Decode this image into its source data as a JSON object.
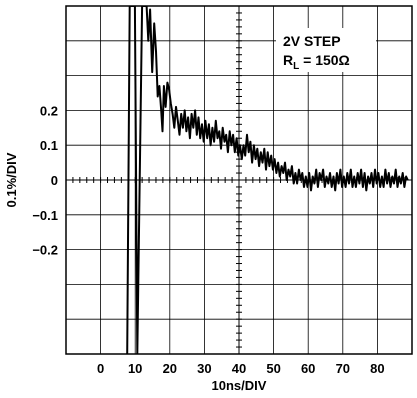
{
  "chart_data": {
    "type": "line",
    "title": "",
    "xlabel": "10ns/DIV",
    "ylabel": "0.1%/DIV",
    "x_tick_labels": [
      "0",
      "10",
      "20",
      "30",
      "40",
      "50",
      "60",
      "70",
      "80"
    ],
    "x_ticks": [
      0,
      10,
      20,
      30,
      40,
      50,
      60,
      70,
      80
    ],
    "y_tick_labels": [
      "0.2",
      "0.1",
      "0",
      "−0.1",
      "−0.2"
    ],
    "y_ticks": [
      0.2,
      0.1,
      0,
      -0.1,
      -0.2
    ],
    "xlim": [
      -10,
      90
    ],
    "ylim": [
      -0.5,
      0.5
    ],
    "grid": true,
    "annotation": {
      "line1": "2V STEP",
      "line2_main": "R",
      "line2_sub": "L",
      "line2_rest": " = 150Ω"
    },
    "series": [
      {
        "values": [
          [
            7.7,
            -0.5
          ],
          [
            8.4,
            0.5
          ],
          [
            9.9,
            0.5
          ],
          [
            10.6,
            -0.5
          ],
          [
            12.0,
            0.5
          ],
          [
            13.3,
            0.5
          ],
          [
            13.8,
            0.4
          ],
          [
            14.3,
            0.49
          ],
          [
            14.9,
            0.31
          ],
          [
            15.5,
            0.45
          ],
          [
            16.0,
            0.37
          ],
          [
            16.5,
            0.24
          ],
          [
            17.0,
            0.27
          ],
          [
            17.5,
            0.2
          ],
          [
            17.9,
            0.14
          ],
          [
            18.3,
            0.27
          ],
          [
            18.8,
            0.21
          ],
          [
            19.3,
            0.28
          ],
          [
            19.8,
            0.26
          ],
          [
            20.3,
            0.22
          ],
          [
            20.8,
            0.19
          ],
          [
            21.3,
            0.15
          ],
          [
            21.8,
            0.21
          ],
          [
            22.3,
            0.17
          ],
          [
            22.8,
            0.13
          ],
          [
            23.3,
            0.19
          ],
          [
            23.8,
            0.15
          ],
          [
            24.3,
            0.2
          ],
          [
            24.8,
            0.14
          ],
          [
            25.3,
            0.18
          ],
          [
            25.8,
            0.12
          ],
          [
            26.3,
            0.19
          ],
          [
            26.8,
            0.15
          ],
          [
            27.3,
            0.2
          ],
          [
            27.8,
            0.13
          ],
          [
            28.3,
            0.18
          ],
          [
            28.8,
            0.12
          ],
          [
            29.3,
            0.16
          ],
          [
            29.8,
            0.11
          ],
          [
            30.3,
            0.17
          ],
          [
            30.8,
            0.12
          ],
          [
            31.3,
            0.16
          ],
          [
            31.8,
            0.1
          ],
          [
            32.3,
            0.15
          ],
          [
            32.8,
            0.11
          ],
          [
            33.3,
            0.17
          ],
          [
            33.8,
            0.12
          ],
          [
            34.3,
            0.14
          ],
          [
            34.8,
            0.09
          ],
          [
            35.3,
            0.15
          ],
          [
            35.8,
            0.11
          ],
          [
            36.3,
            0.13
          ],
          [
            36.8,
            0.08
          ],
          [
            37.3,
            0.14
          ],
          [
            37.8,
            0.1
          ],
          [
            38.3,
            0.13
          ],
          [
            38.8,
            0.08
          ],
          [
            39.3,
            0.12
          ],
          [
            39.8,
            0.07
          ],
          [
            40.3,
            0.1
          ],
          [
            40.8,
            0.06
          ],
          [
            41.3,
            0.1
          ],
          [
            41.8,
            0.07
          ],
          [
            42.3,
            0.13
          ],
          [
            42.8,
            0.08
          ],
          [
            43.3,
            0.11
          ],
          [
            43.8,
            0.05
          ],
          [
            44.3,
            0.1
          ],
          [
            44.8,
            0.06
          ],
          [
            45.3,
            0.09
          ],
          [
            45.8,
            0.04
          ],
          [
            46.3,
            0.08
          ],
          [
            46.8,
            0.05
          ],
          [
            47.3,
            0.09
          ],
          [
            47.8,
            0.03
          ],
          [
            48.3,
            0.08
          ],
          [
            48.8,
            0.04
          ],
          [
            49.3,
            0.07
          ],
          [
            49.8,
            0.03
          ],
          [
            50.3,
            0.06
          ],
          [
            50.8,
            0.02
          ],
          [
            51.3,
            0.05
          ],
          [
            51.8,
            0.01
          ],
          [
            52.3,
            0.04
          ],
          [
            52.8,
            0.02
          ],
          [
            53.3,
            0.05
          ],
          [
            53.8,
            0.0
          ],
          [
            54.3,
            0.03
          ],
          [
            54.8,
            0.01
          ],
          [
            55.3,
            0.04
          ],
          [
            55.8,
            -0.01
          ],
          [
            56.3,
            0.02
          ],
          [
            56.8,
            -0.01
          ],
          [
            57.3,
            0.03
          ],
          [
            57.8,
            0.0
          ],
          [
            58.3,
            0.02
          ],
          [
            58.8,
            -0.02
          ],
          [
            59.3,
            0.01
          ],
          [
            59.8,
            -0.02
          ],
          [
            60.3,
            0.02
          ],
          [
            60.8,
            -0.03
          ],
          [
            61.3,
            0.01
          ],
          [
            61.8,
            -0.01
          ],
          [
            62.3,
            0.03
          ],
          [
            62.8,
            -0.02
          ],
          [
            63.3,
            0.02
          ],
          [
            63.8,
            0.0
          ],
          [
            64.3,
            0.03
          ],
          [
            64.8,
            -0.02
          ],
          [
            65.3,
            0.01
          ],
          [
            65.8,
            -0.01
          ],
          [
            66.3,
            0.02
          ],
          [
            66.8,
            -0.02
          ],
          [
            67.3,
            0.01
          ],
          [
            67.8,
            -0.03
          ],
          [
            68.3,
            0.02
          ],
          [
            68.8,
            -0.01
          ],
          [
            69.3,
            0.03
          ],
          [
            69.8,
            -0.02
          ],
          [
            70.3,
            0.01
          ],
          [
            70.8,
            -0.02
          ],
          [
            71.3,
            0.02
          ],
          [
            71.8,
            -0.01
          ],
          [
            72.3,
            0.03
          ],
          [
            72.8,
            -0.02
          ],
          [
            73.3,
            0.01
          ],
          [
            73.8,
            -0.02
          ],
          [
            74.3,
            0.02
          ],
          [
            74.8,
            -0.01
          ],
          [
            75.3,
            0.03
          ],
          [
            75.8,
            -0.02
          ],
          [
            76.3,
            0.02
          ],
          [
            76.8,
            -0.03
          ],
          [
            77.3,
            0.01
          ],
          [
            77.8,
            -0.01
          ],
          [
            78.3,
            0.02
          ],
          [
            78.8,
            -0.02
          ],
          [
            79.3,
            0.03
          ],
          [
            79.8,
            -0.01
          ],
          [
            80.3,
            0.02
          ],
          [
            80.8,
            -0.02
          ],
          [
            81.3,
            0.01
          ],
          [
            81.8,
            -0.02
          ],
          [
            82.3,
            0.03
          ],
          [
            82.8,
            -0.01
          ],
          [
            83.3,
            0.02
          ],
          [
            83.8,
            -0.02
          ],
          [
            84.3,
            0.01
          ],
          [
            84.8,
            -0.01
          ],
          [
            85.3,
            0.03
          ],
          [
            85.8,
            -0.02
          ],
          [
            86.3,
            0.01
          ],
          [
            86.8,
            -0.01
          ],
          [
            87.3,
            0.02
          ],
          [
            87.8,
            -0.02
          ],
          [
            88.3,
            0.01
          ],
          [
            88.8,
            0.0
          ]
        ]
      }
    ]
  }
}
